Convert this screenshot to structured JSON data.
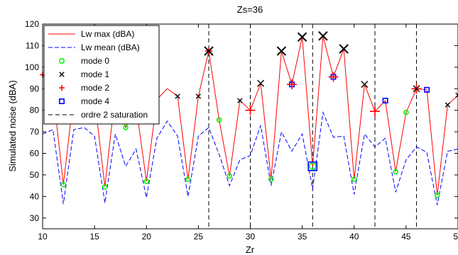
{
  "chart_data": {
    "type": "line",
    "title": "Zs=36",
    "xlabel": "Zr",
    "ylabel": "Simulated noise (dBA)",
    "xlim": [
      10,
      50
    ],
    "ylim": [
      25,
      120
    ],
    "xticks": [
      10,
      15,
      20,
      25,
      30,
      35,
      40,
      45,
      50
    ],
    "yticks": [
      30,
      40,
      50,
      60,
      70,
      80,
      90,
      100,
      110,
      120
    ],
    "grid": false,
    "legend_position": "top-left",
    "legend": [
      "Lw max (dBA)",
      "Lw mean (dBA)",
      "mode 0",
      "mode 1",
      "mode 2",
      "mode 4",
      "ordre 2 saturation"
    ],
    "colors": {
      "lw_max": "#ff0000",
      "lw_mean": "#0000ff",
      "mode0": "#00ff00",
      "mode1": "#000000",
      "mode2": "#ff0000",
      "mode4": "#0000ff",
      "saturation": "#000000"
    },
    "series": [
      {
        "name": "Lw max (dBA)",
        "x": [
          10,
          11,
          12,
          13,
          14,
          15,
          16,
          17,
          18,
          19,
          20,
          21,
          22,
          23,
          24,
          25,
          26,
          27,
          28,
          29,
          30,
          31,
          32,
          33,
          34,
          35,
          36,
          37,
          38,
          39,
          40,
          41,
          42,
          43,
          44,
          45,
          46,
          47,
          48,
          49,
          50
        ],
        "y": [
          96.5,
          89,
          45.5,
          87,
          86,
          85.5,
          44.5,
          88,
          72,
          82,
          47,
          85,
          90,
          86.5,
          48,
          86.5,
          107.5,
          75.5,
          49.5,
          84.5,
          80,
          92.5,
          48,
          107.5,
          92,
          114,
          54,
          114.5,
          95.5,
          108.5,
          48,
          92,
          79.5,
          84.5,
          51.5,
          79,
          90,
          89.5,
          40.5,
          82.5,
          87
        ]
      },
      {
        "name": "Lw mean (dBA)",
        "x": [
          10,
          11,
          12,
          13,
          14,
          15,
          16,
          17,
          18,
          19,
          20,
          21,
          22,
          23,
          24,
          25,
          26,
          27,
          28,
          29,
          30,
          31,
          32,
          33,
          34,
          35,
          36,
          37,
          38,
          39,
          40,
          41,
          42,
          43,
          44,
          45,
          46,
          47,
          48,
          49,
          50
        ],
        "y": [
          69,
          71,
          36.5,
          71,
          72,
          68,
          37,
          69,
          54,
          62,
          39.5,
          67,
          75,
          68,
          40,
          68,
          72,
          59.5,
          45,
          57,
          59,
          73,
          45,
          70,
          61,
          69,
          43.5,
          79,
          67.5,
          68,
          41,
          69,
          63,
          67,
          42,
          57,
          63,
          60.5,
          36,
          61,
          62
        ]
      }
    ],
    "markers": {
      "mode 0": [
        [
          12,
          45.5
        ],
        [
          16,
          44.5
        ],
        [
          18,
          72
        ],
        [
          20,
          47
        ],
        [
          24,
          48
        ],
        [
          27,
          75.5
        ],
        [
          28,
          49.5
        ],
        [
          32,
          48
        ],
        [
          36,
          54
        ],
        [
          40,
          48
        ],
        [
          44,
          51.5
        ],
        [
          45,
          79
        ],
        [
          48,
          40.5
        ]
      ],
      "mode 1": [
        [
          23,
          86.5
        ],
        [
          25,
          86.5
        ],
        [
          26,
          107.5
        ],
        [
          29,
          84.5
        ],
        [
          31,
          92.5
        ],
        [
          33,
          107.5
        ],
        [
          35,
          114
        ],
        [
          37,
          114.5
        ],
        [
          39,
          108.5
        ],
        [
          41,
          92
        ],
        [
          46,
          90
        ],
        [
          49,
          82.5
        ],
        [
          50,
          87
        ]
      ],
      "mode 2": [
        [
          10,
          96.5
        ],
        [
          26,
          107.5
        ],
        [
          30,
          80
        ],
        [
          34,
          92
        ],
        [
          38,
          95.5
        ],
        [
          42,
          79.5
        ],
        [
          46,
          90
        ]
      ],
      "mode 4": [
        [
          34,
          92
        ],
        [
          36,
          54
        ],
        [
          38,
          95.5
        ],
        [
          43,
          84.5
        ],
        [
          47,
          89.5
        ]
      ]
    },
    "saturation_x": [
      26,
      30,
      36,
      42,
      46
    ]
  }
}
